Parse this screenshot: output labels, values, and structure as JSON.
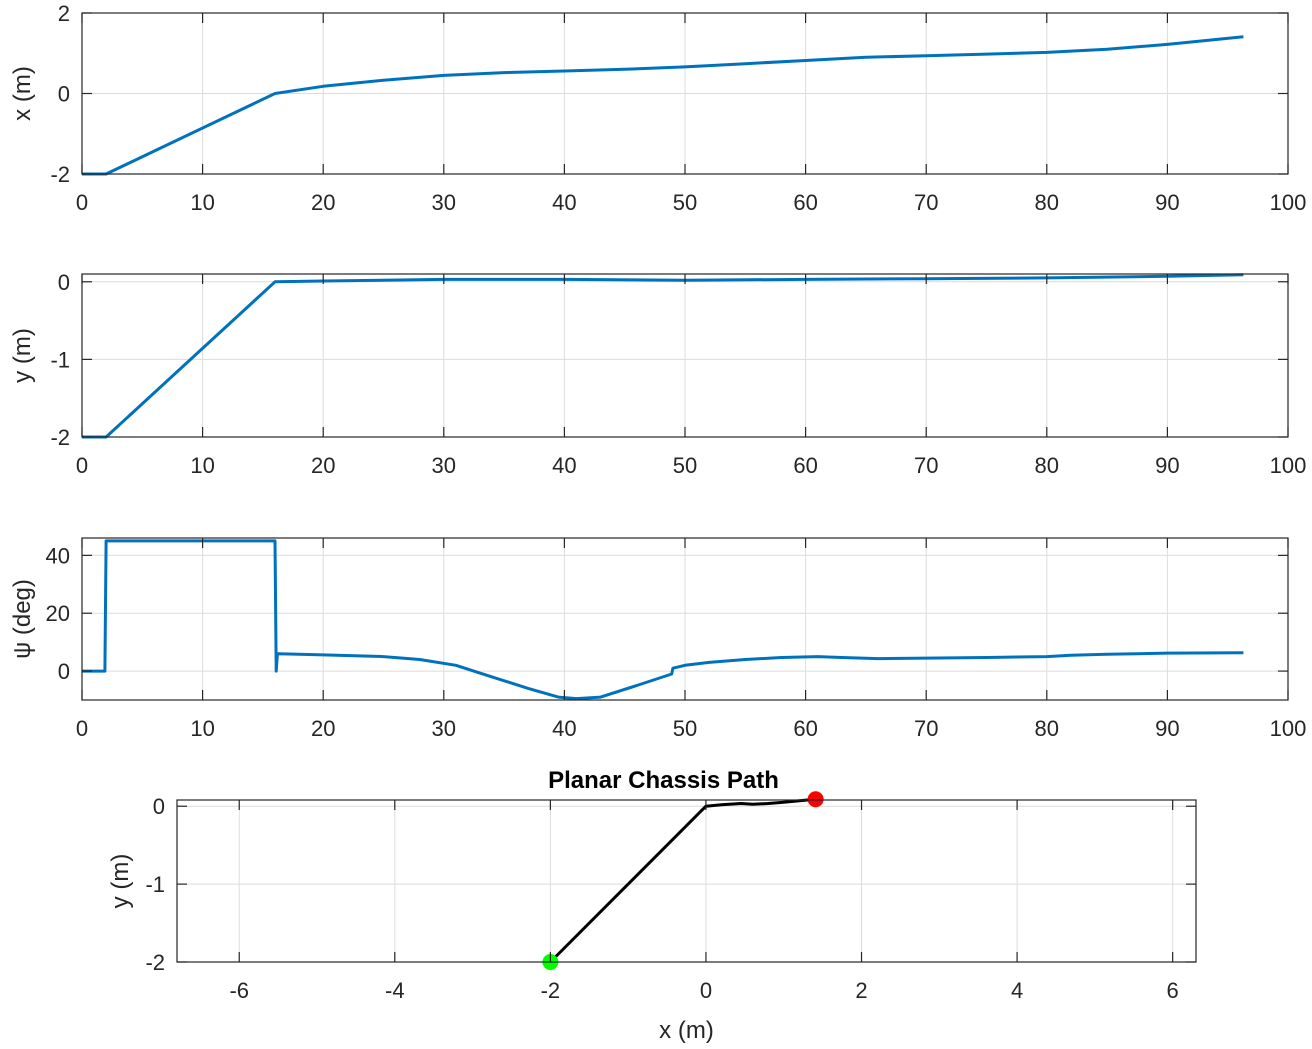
{
  "chart_data": [
    {
      "type": "line",
      "title": "",
      "xlabel": "",
      "ylabel": "x (m)",
      "xlim": [
        0,
        100
      ],
      "ylim": [
        -2,
        2
      ],
      "xticks": [
        0,
        10,
        20,
        30,
        40,
        50,
        60,
        70,
        80,
        90,
        100
      ],
      "yticks": [
        -2,
        0,
        2
      ],
      "grid": true,
      "series": [
        {
          "color": "#0072BD",
          "x": [
            0,
            2,
            16,
            20,
            25,
            30,
            35,
            40,
            45,
            50,
            55,
            60,
            65,
            70,
            75,
            80,
            85,
            90,
            96.3
          ],
          "y": [
            -2,
            -2,
            0,
            0.18,
            0.33,
            0.45,
            0.52,
            0.56,
            0.6,
            0.66,
            0.74,
            0.82,
            0.9,
            0.94,
            0.98,
            1.02,
            1.1,
            1.22,
            1.41
          ]
        }
      ]
    },
    {
      "type": "line",
      "title": "",
      "xlabel": "",
      "ylabel": "y (m)",
      "xlim": [
        0,
        100
      ],
      "ylim": [
        -2,
        0.1
      ],
      "xticks": [
        0,
        10,
        20,
        30,
        40,
        50,
        60,
        70,
        80,
        90,
        100
      ],
      "yticks": [
        -2,
        -1,
        0
      ],
      "grid": true,
      "series": [
        {
          "color": "#0072BD",
          "x": [
            0,
            2,
            16,
            20,
            30,
            40,
            50,
            60,
            70,
            80,
            90,
            96.3
          ],
          "y": [
            -2,
            -2,
            0,
            0.01,
            0.03,
            0.03,
            0.02,
            0.03,
            0.04,
            0.05,
            0.07,
            0.09
          ]
        }
      ]
    },
    {
      "type": "line",
      "title": "",
      "xlabel": "",
      "ylabel": "ψ (deg)",
      "xlim": [
        0,
        100
      ],
      "ylim": [
        -10,
        46
      ],
      "xticks": [
        0,
        10,
        20,
        30,
        40,
        50,
        60,
        70,
        80,
        90,
        100
      ],
      "yticks": [
        0,
        20,
        40
      ],
      "grid": true,
      "series": [
        {
          "color": "#0072BD",
          "x": [
            0,
            1.9,
            2.0,
            16.0,
            16.1,
            16.2,
            16.3,
            20,
            25,
            28,
            31,
            34,
            37,
            39.5,
            41,
            43,
            46,
            48.9,
            49.0,
            50,
            52,
            55,
            58,
            61,
            63,
            66,
            70,
            75,
            80,
            82,
            85,
            90,
            96.3
          ],
          "y": [
            0,
            0,
            45,
            45,
            0,
            6,
            6,
            5.6,
            5,
            4,
            2,
            -2,
            -6,
            -9,
            -9.5,
            -9,
            -5,
            -1,
            1,
            2,
            3,
            4,
            4.7,
            5,
            4.7,
            4.3,
            4.5,
            4.7,
            5,
            5.5,
            5.8,
            6.2,
            6.3
          ]
        }
      ]
    },
    {
      "type": "line",
      "title": "Planar Chassis Path",
      "xlabel": "x (m)",
      "ylabel": "y (m)",
      "xlim": [
        -6.8,
        6.3
      ],
      "ylim": [
        -2,
        0.08
      ],
      "xticks": [
        -6,
        -4,
        -2,
        0,
        2,
        4,
        6
      ],
      "yticks": [
        -2,
        -1,
        0
      ],
      "grid": true,
      "series": [
        {
          "color": "#000000",
          "x": [
            -2,
            0,
            0.2,
            0.45,
            0.6,
            0.8,
            1.0,
            1.2,
            1.41
          ],
          "y": [
            -2,
            0,
            0.02,
            0.035,
            0.025,
            0.035,
            0.05,
            0.07,
            0.09
          ]
        }
      ],
      "markers": [
        {
          "x": -2,
          "y": -2,
          "color": "#00FF00"
        },
        {
          "x": 1.41,
          "y": 0.09,
          "color": "#FF0000"
        }
      ]
    }
  ]
}
